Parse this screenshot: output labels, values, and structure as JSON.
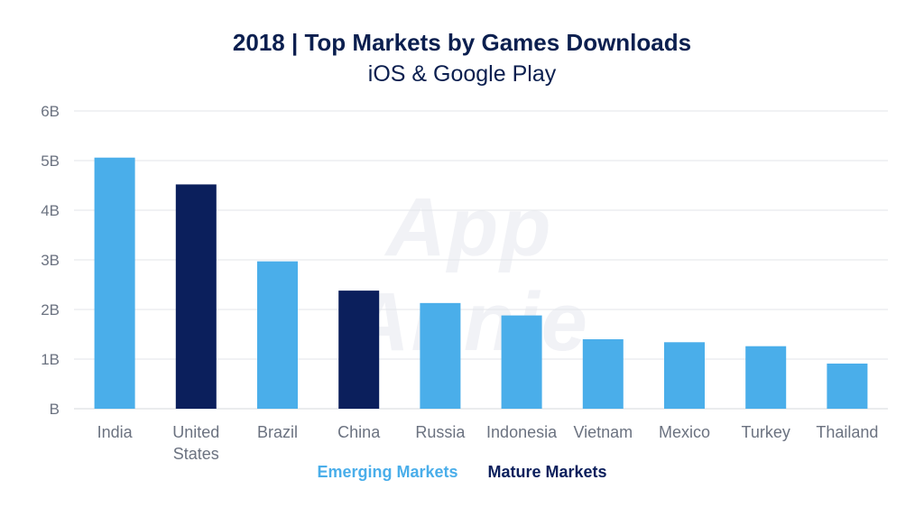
{
  "chart_data": {
    "type": "bar",
    "title": "2018 | Top Markets by Games Downloads",
    "subtitle": "iOS & Google Play",
    "watermark": "App Annie",
    "categories": [
      "India",
      "United States",
      "Brazil",
      "China",
      "Russia",
      "Indonesia",
      "Vietnam",
      "Mexico",
      "Turkey",
      "Thailand"
    ],
    "category_lines": [
      [
        "India"
      ],
      [
        "United",
        "States"
      ],
      [
        "Brazil"
      ],
      [
        "China"
      ],
      [
        "Russia"
      ],
      [
        "Indonesia"
      ],
      [
        "Vietnam"
      ],
      [
        "Mexico"
      ],
      [
        "Turkey"
      ],
      [
        "Thailand"
      ]
    ],
    "values": [
      5.06,
      4.52,
      2.97,
      2.38,
      2.13,
      1.88,
      1.4,
      1.34,
      1.26,
      0.91
    ],
    "groups": [
      "emerging",
      "mature",
      "emerging",
      "mature",
      "emerging",
      "emerging",
      "emerging",
      "emerging",
      "emerging",
      "emerging"
    ],
    "yticks": [
      0,
      1,
      2,
      3,
      4,
      5,
      6
    ],
    "ytick_labels": [
      "B",
      "1B",
      "2B",
      "3B",
      "4B",
      "5B",
      "6B"
    ],
    "ylim": [
      0,
      6
    ],
    "grid": true,
    "legend_position": "bottom-center",
    "legend": [
      {
        "name": "Emerging Markets",
        "key": "emerging",
        "color": "#4aaeea"
      },
      {
        "name": "Mature Markets",
        "key": "mature",
        "color": "#0b1f5c"
      }
    ]
  }
}
